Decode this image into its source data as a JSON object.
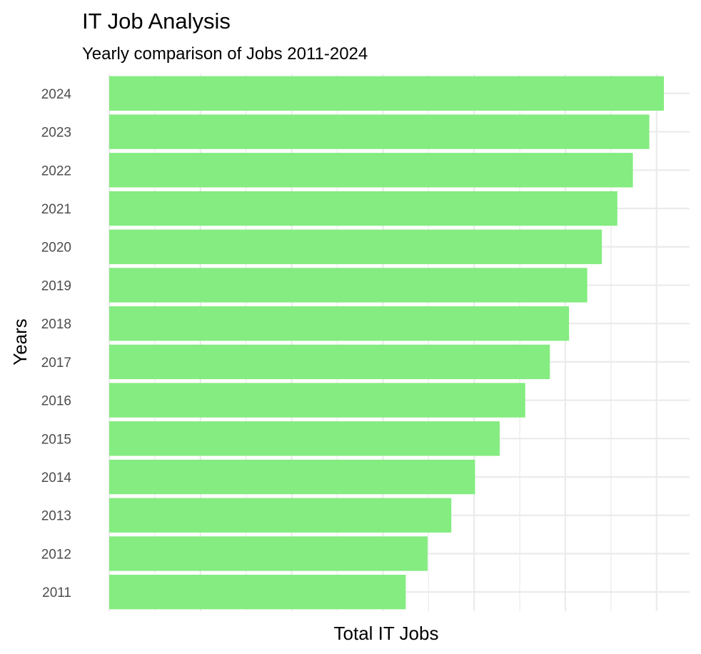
{
  "chart_data": {
    "type": "bar",
    "orientation": "horizontal",
    "title": "IT Job Analysis",
    "subtitle": "Yearly comparison of Jobs 2011-2024",
    "xlabel": "Total IT Jobs",
    "ylabel": "Years",
    "categories": [
      "2011",
      "2012",
      "2013",
      "2014",
      "2015",
      "2016",
      "2017",
      "2018",
      "2019",
      "2020",
      "2021",
      "2022",
      "2023",
      "2024"
    ],
    "values": [
      325,
      349,
      375,
      401,
      428,
      456,
      483,
      504,
      524,
      540,
      557,
      574,
      592,
      608
    ],
    "xlim": [
      0,
      640
    ],
    "x_ticks_labeled": false,
    "grid": true,
    "bar_color": "#84ec80",
    "legend": "none"
  }
}
